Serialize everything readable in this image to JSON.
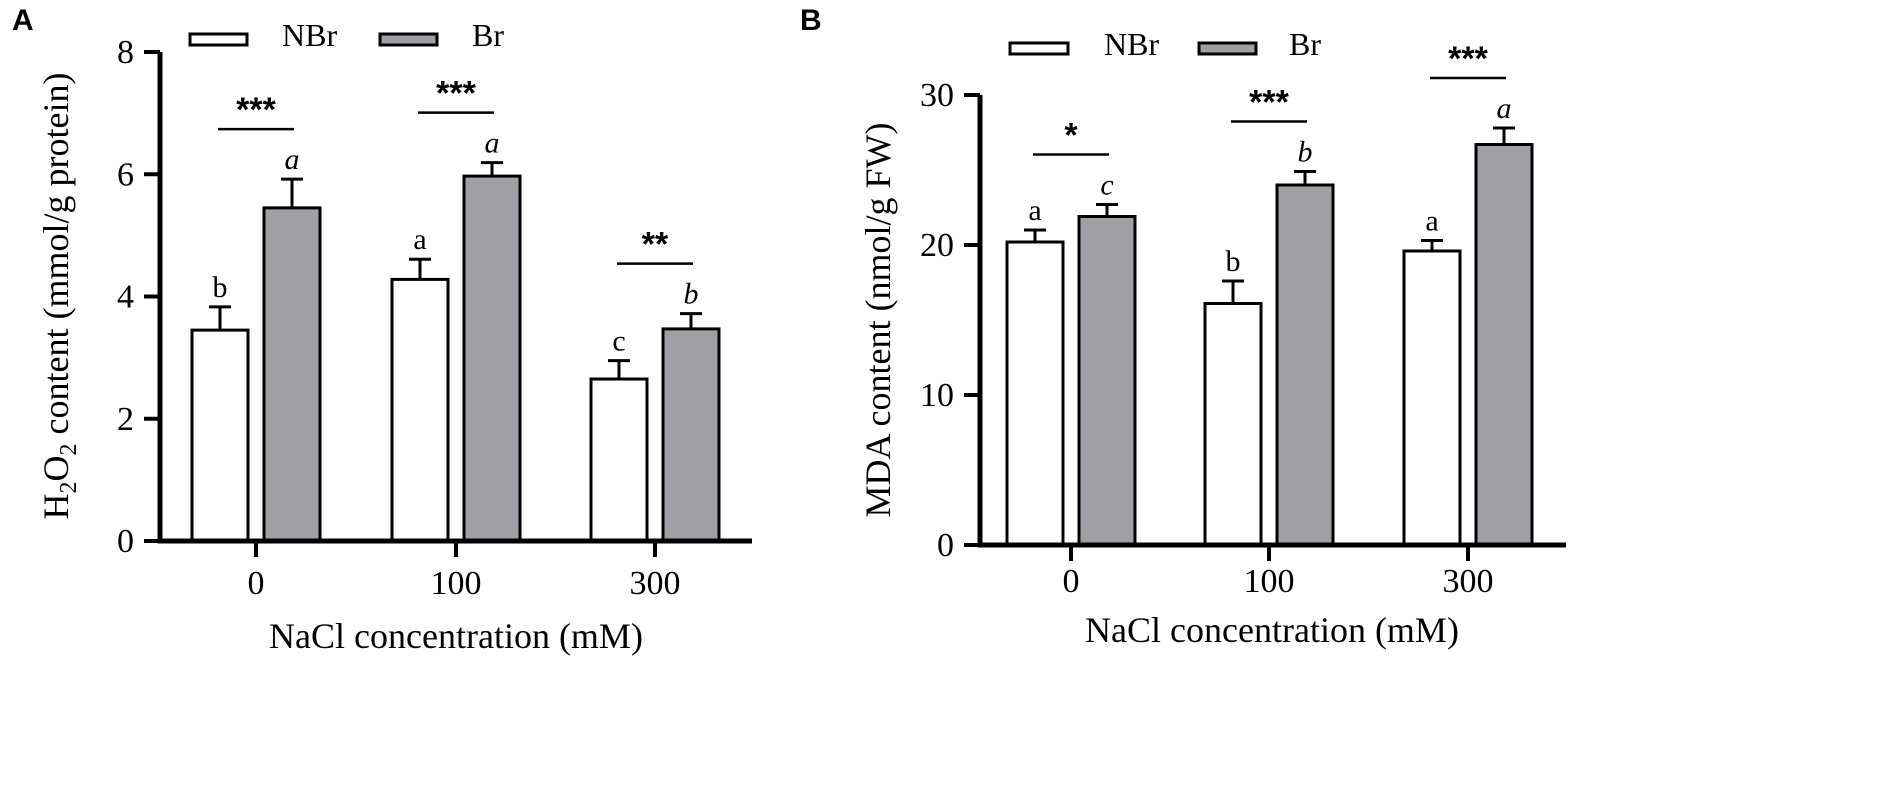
{
  "chart_data": [
    {
      "panel": "A",
      "type": "bar",
      "xlabel": "NaCl concentration (mM)",
      "ylabel": {
        "prefix": "H",
        "sub1": "2",
        "mid": "O",
        "sub2": "2",
        "suffix": " content (mmol/g protein)"
      },
      "ylim": [
        0,
        8
      ],
      "yticks": [
        0,
        2,
        4,
        6,
        8
      ],
      "categories": [
        "0",
        "100",
        "300"
      ],
      "series": [
        {
          "name": "NBr",
          "color": "#ffffff",
          "values": [
            3.45,
            4.28,
            2.65
          ],
          "errors": [
            0.38,
            0.33,
            0.3
          ],
          "letters": [
            "b",
            "a",
            "c"
          ],
          "italic": false
        },
        {
          "name": "Br",
          "color": "#a0a0a4",
          "values": [
            5.45,
            5.97,
            3.47
          ],
          "errors": [
            0.47,
            0.22,
            0.25
          ],
          "letters": [
            "a",
            "a",
            "b"
          ],
          "italic": true
        }
      ],
      "significance": [
        "***",
        "***",
        "**"
      ],
      "legend": [
        "NBr",
        "Br"
      ]
    },
    {
      "panel": "B",
      "type": "bar",
      "xlabel": "NaCl concentration (mM)",
      "ylabel": "MDA content (nmol/g FW)",
      "ylim": [
        0,
        30
      ],
      "yticks": [
        0,
        10,
        20,
        30
      ],
      "categories": [
        "0",
        "100",
        "300"
      ],
      "series": [
        {
          "name": "NBr",
          "color": "#ffffff",
          "values": [
            20.2,
            16.1,
            19.6
          ],
          "errors": [
            0.8,
            1.5,
            0.7
          ],
          "letters": [
            "a",
            "b",
            "a"
          ],
          "italic": false
        },
        {
          "name": "Br",
          "color": "#a0a0a4",
          "values": [
            21.9,
            24.0,
            26.7
          ],
          "errors": [
            0.8,
            0.9,
            1.1
          ],
          "letters": [
            "c",
            "b",
            "a"
          ],
          "italic": true
        }
      ],
      "significance": [
        "*",
        "***",
        "***"
      ],
      "legend": [
        "NBr",
        "Br"
      ]
    }
  ]
}
